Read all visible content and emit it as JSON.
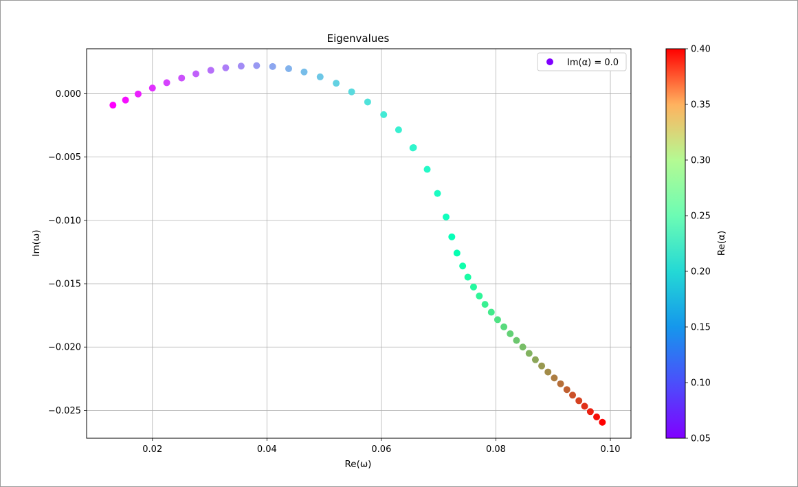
{
  "chart_data": {
    "type": "scatter",
    "title": "Eigenvalues",
    "xlabel": "Re(ω)",
    "ylabel": "Im(ω)",
    "xlim": [
      0.0085,
      0.1036
    ],
    "ylim": [
      -0.0272,
      0.00355
    ],
    "xticks": [
      0.02,
      0.04,
      0.06,
      0.08,
      0.1
    ],
    "xtick_labels": [
      "0.02",
      "0.04",
      "0.06",
      "0.08",
      "0.10"
    ],
    "yticks": [
      0.0,
      -0.005,
      -0.01,
      -0.015,
      -0.02,
      -0.025
    ],
    "ytick_labels": [
      "0.000",
      "−0.005",
      "−0.010",
      "−0.015",
      "−0.020",
      "−0.025"
    ],
    "grid": true,
    "legend": {
      "placement": "top-right",
      "entries": [
        {
          "label": "Im(α) = 0.0",
          "color": "#8000ff"
        }
      ]
    },
    "colorbar": {
      "label": "Re(α)",
      "colormap": "rainbow",
      "range": [
        0.05,
        0.4
      ],
      "ticks": [
        0.05,
        0.1,
        0.15,
        0.2,
        0.25,
        0.3,
        0.35,
        0.4
      ],
      "tick_labels": [
        "0.05",
        "0.10",
        "0.15",
        "0.20",
        "0.25",
        "0.30",
        "0.35",
        "0.40"
      ]
    },
    "points": [
      {
        "x": 0.0131,
        "y": -0.0009,
        "c": 0.05
      },
      {
        "x": 0.0153,
        "y": -0.0005,
        "c": 0.057
      },
      {
        "x": 0.0175,
        "y": -2e-05,
        "c": 0.064
      },
      {
        "x": 0.02,
        "y": 0.00045,
        "c": 0.071
      },
      {
        "x": 0.0225,
        "y": 0.00087,
        "c": 0.079
      },
      {
        "x": 0.0251,
        "y": 0.00124,
        "c": 0.086
      },
      {
        "x": 0.0276,
        "y": 0.00157,
        "c": 0.093
      },
      {
        "x": 0.0302,
        "y": 0.00185,
        "c": 0.1
      },
      {
        "x": 0.0328,
        "y": 0.00205,
        "c": 0.107
      },
      {
        "x": 0.0355,
        "y": 0.00218,
        "c": 0.114
      },
      {
        "x": 0.0382,
        "y": 0.00222,
        "c": 0.121
      },
      {
        "x": 0.041,
        "y": 0.00215,
        "c": 0.129
      },
      {
        "x": 0.0438,
        "y": 0.00198,
        "c": 0.136
      },
      {
        "x": 0.0465,
        "y": 0.00172,
        "c": 0.143
      },
      {
        "x": 0.0493,
        "y": 0.00133,
        "c": 0.15
      },
      {
        "x": 0.0521,
        "y": 0.00083,
        "c": 0.157
      },
      {
        "x": 0.0548,
        "y": 0.00015,
        "c": 0.164
      },
      {
        "x": 0.0576,
        "y": -0.00065,
        "c": 0.171
      },
      {
        "x": 0.0604,
        "y": -0.00165,
        "c": 0.179
      },
      {
        "x": 0.063,
        "y": -0.00285,
        "c": 0.186
      },
      {
        "x": 0.0655,
        "y": -0.00428,
        "c": 0.193
      },
      {
        "x": 0.0656,
        "y": -0.00425,
        "c": 0.193
      },
      {
        "x": 0.068,
        "y": -0.00597,
        "c": 0.2
      },
      {
        "x": 0.0698,
        "y": -0.00787,
        "c": 0.207
      },
      {
        "x": 0.0713,
        "y": -0.00973,
        "c": 0.214
      },
      {
        "x": 0.0723,
        "y": -0.0113,
        "c": 0.221
      },
      {
        "x": 0.0732,
        "y": -0.01258,
        "c": 0.229
      },
      {
        "x": 0.0742,
        "y": -0.0136,
        "c": 0.236
      },
      {
        "x": 0.0751,
        "y": -0.01448,
        "c": 0.243
      },
      {
        "x": 0.0761,
        "y": -0.01526,
        "c": 0.25
      },
      {
        "x": 0.0771,
        "y": -0.01597,
        "c": 0.257
      },
      {
        "x": 0.0781,
        "y": -0.01663,
        "c": 0.264
      },
      {
        "x": 0.0792,
        "y": -0.01725,
        "c": 0.271
      },
      {
        "x": 0.0803,
        "y": -0.01784,
        "c": 0.279
      },
      {
        "x": 0.0814,
        "y": -0.01841,
        "c": 0.286
      },
      {
        "x": 0.0825,
        "y": -0.01895,
        "c": 0.293
      },
      {
        "x": 0.0836,
        "y": -0.01948,
        "c": 0.3
      },
      {
        "x": 0.0847,
        "y": -0.02,
        "c": 0.307
      },
      {
        "x": 0.0858,
        "y": -0.0205,
        "c": 0.314
      },
      {
        "x": 0.0869,
        "y": -0.021,
        "c": 0.321
      },
      {
        "x": 0.088,
        "y": -0.02149,
        "c": 0.329
      },
      {
        "x": 0.0891,
        "y": -0.02197,
        "c": 0.336
      },
      {
        "x": 0.0902,
        "y": -0.02244,
        "c": 0.343
      },
      {
        "x": 0.0913,
        "y": -0.0229,
        "c": 0.35
      },
      {
        "x": 0.0924,
        "y": -0.02336,
        "c": 0.357
      },
      {
        "x": 0.0934,
        "y": -0.0238,
        "c": 0.364
      },
      {
        "x": 0.0945,
        "y": -0.02424,
        "c": 0.371
      },
      {
        "x": 0.0955,
        "y": -0.02467,
        "c": 0.379
      },
      {
        "x": 0.0965,
        "y": -0.0251,
        "c": 0.386
      },
      {
        "x": 0.0976,
        "y": -0.02552,
        "c": 0.393
      },
      {
        "x": 0.0986,
        "y": -0.02594,
        "c": 0.4
      }
    ]
  }
}
